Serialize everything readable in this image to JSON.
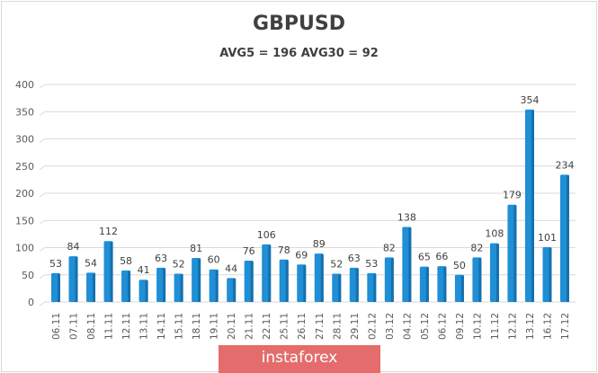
{
  "chart_data": {
    "type": "bar",
    "title": "GBPUSD",
    "subtitle": "AVG5 = 196 AVG30 = 92",
    "categories": [
      "06.11",
      "07.11",
      "08.11",
      "11.11",
      "12.11",
      "13.11",
      "14.11",
      "15.11",
      "18.11",
      "19.11",
      "20.11",
      "21.11",
      "22.11",
      "25.11",
      "26.11",
      "27.11",
      "28.11",
      "29.11",
      "02.12",
      "03.12",
      "04.12",
      "05.12",
      "06.12",
      "09.12",
      "10.12",
      "11.12",
      "12.12",
      "13.12",
      "16.12",
      "17.12"
    ],
    "values": [
      53,
      84,
      54,
      112,
      58,
      41,
      63,
      52,
      81,
      60,
      44,
      76,
      106,
      78,
      69,
      89,
      52,
      63,
      53,
      82,
      138,
      65,
      66,
      50,
      82,
      108,
      179,
      354,
      101,
      234
    ],
    "ylim": [
      0,
      400
    ],
    "yticks": [
      0,
      50,
      100,
      150,
      200,
      250,
      300,
      350,
      400
    ],
    "grid": true,
    "xlabel": "",
    "ylabel": "",
    "bar_color": "#1f8fd6"
  },
  "watermark": "instaforex"
}
